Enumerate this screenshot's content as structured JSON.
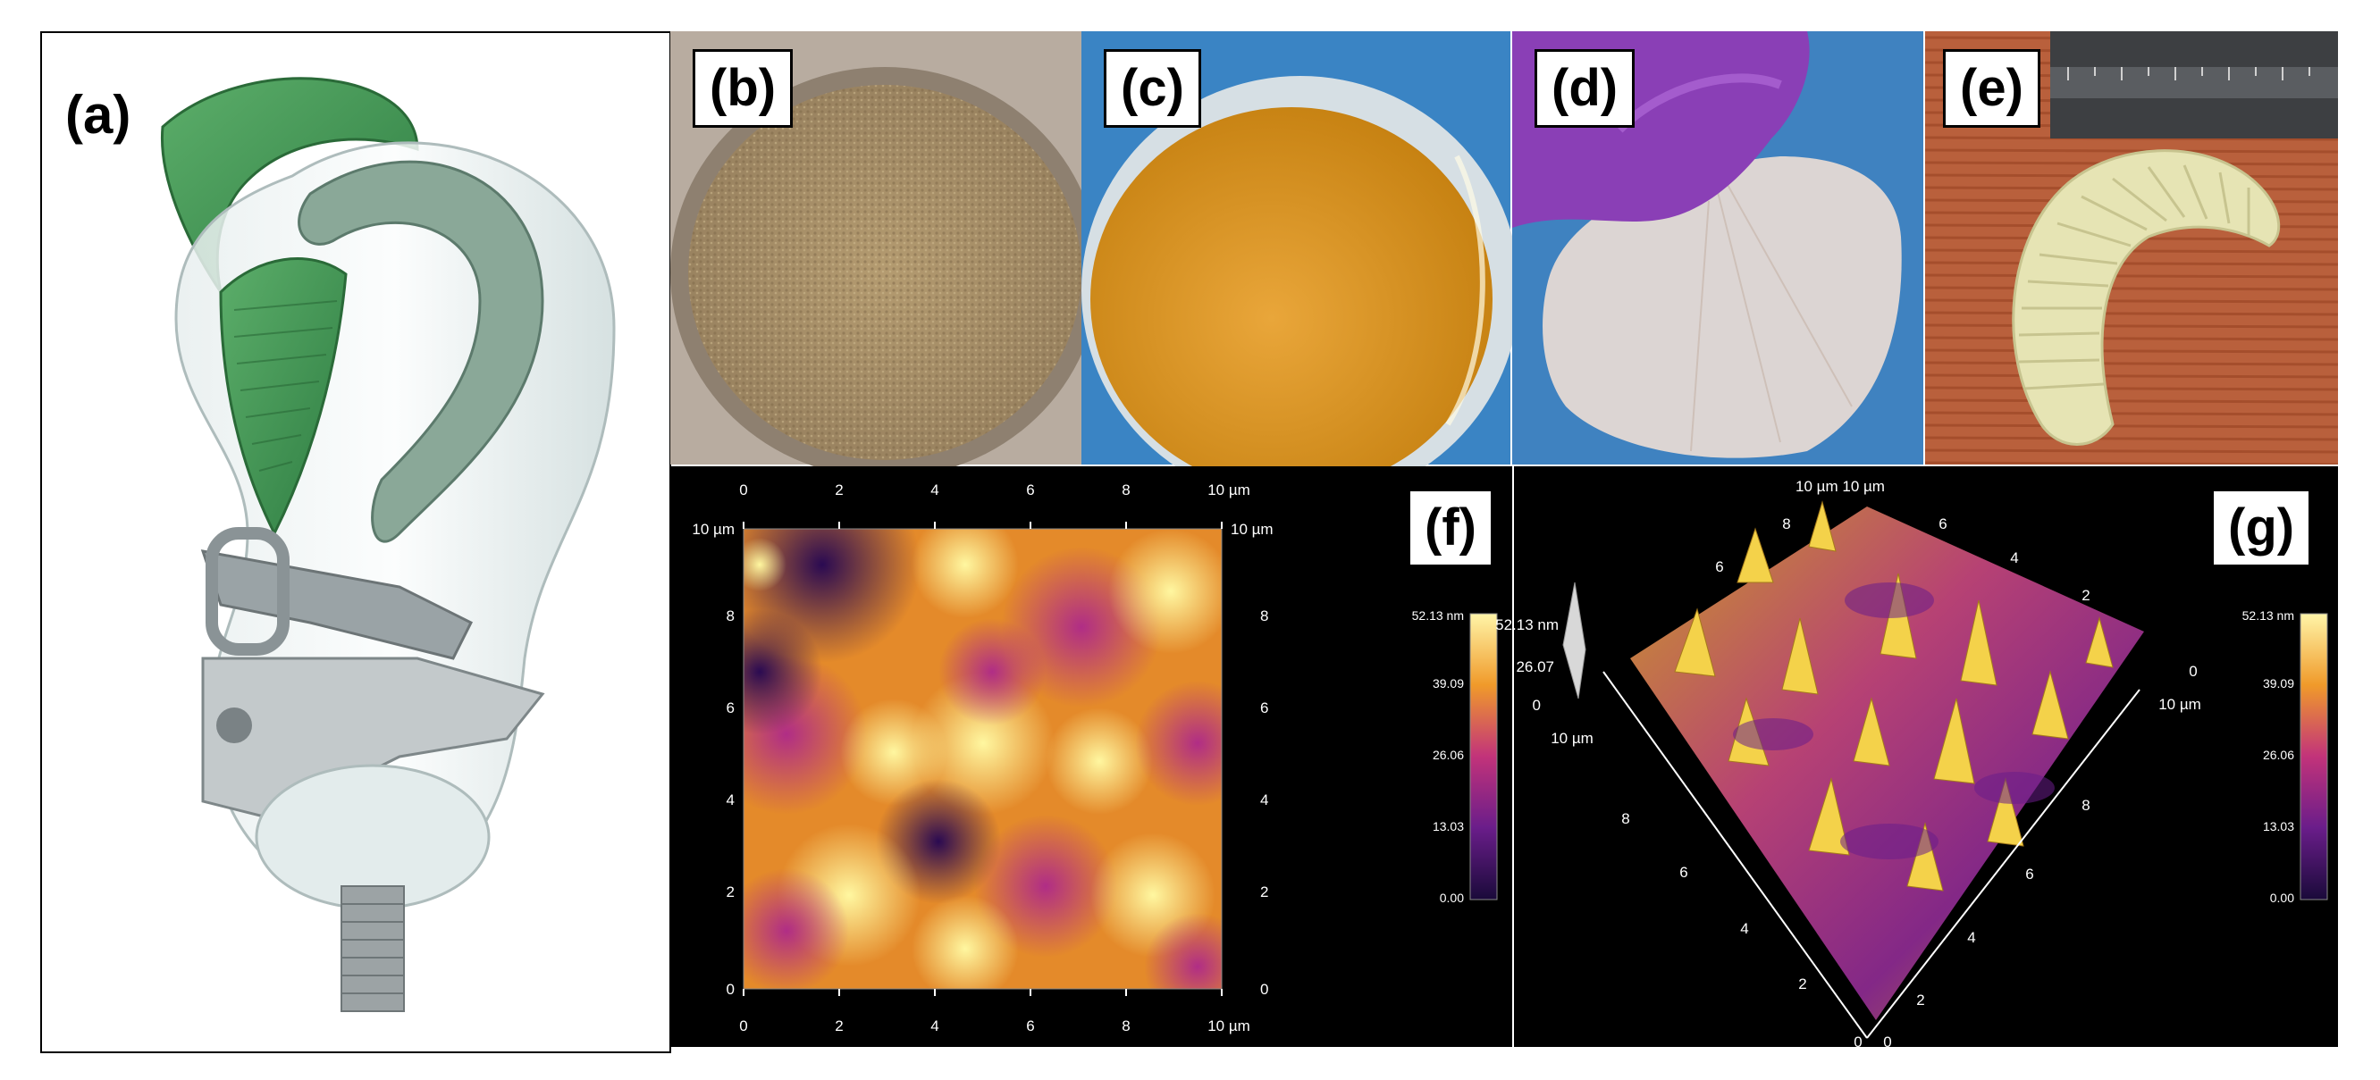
{
  "labels": {
    "a": "(a)",
    "b": "(b)",
    "c": "(c)",
    "d": "(d)",
    "e": "(e)",
    "f": "(f)",
    "g": "(g)"
  },
  "afm2d": {
    "x_ticks": [
      "0",
      "2",
      "4",
      "6",
      "8",
      "10 µm"
    ],
    "y_ticks_left": [
      "10 µm",
      "8",
      "6",
      "4",
      "2",
      "0"
    ],
    "y_ticks_right": [
      "10 µm",
      "8",
      "6",
      "4",
      "2",
      "0"
    ],
    "colorbar_ticks": [
      "52.13 nm",
      "39.09",
      "26.06",
      "13.03",
      "0.00"
    ]
  },
  "afm3d": {
    "top_label": "10 µm 10 µm",
    "z_ticks": [
      "52.13 nm",
      "26.07",
      "0"
    ],
    "left_axis": [
      "10 µm",
      "8",
      "6",
      "4",
      "2",
      "0"
    ],
    "right_axis": [
      "8",
      "6",
      "4",
      "2",
      "0"
    ],
    "back_left": [
      "8",
      "6"
    ],
    "back_right": [
      "6",
      "4",
      "2",
      "0"
    ],
    "right_end": "10 µm",
    "colorbar_ticks": [
      "52.13 nm",
      "39.09",
      "26.06",
      "13.03",
      "0.00"
    ]
  },
  "colors": {
    "afm_low": "#2a0a4a",
    "afm_mid": "#b5247a",
    "afm_high": "#ffe76a",
    "insole_green": "#3d8f4f"
  }
}
